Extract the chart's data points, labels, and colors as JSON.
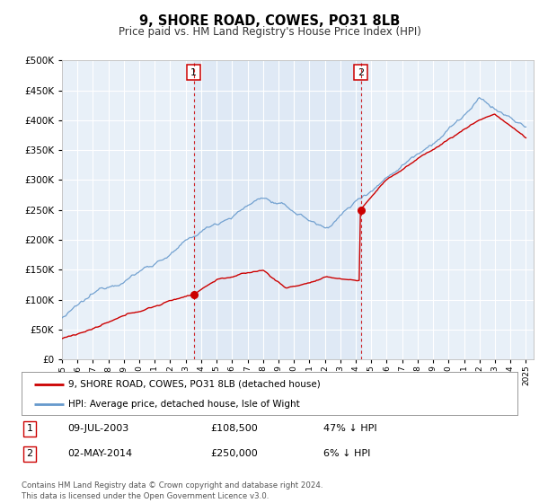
{
  "title": "9, SHORE ROAD, COWES, PO31 8LB",
  "subtitle": "Price paid vs. HM Land Registry's House Price Index (HPI)",
  "legend_label_red": "9, SHORE ROAD, COWES, PO31 8LB (detached house)",
  "legend_label_blue": "HPI: Average price, detached house, Isle of Wight",
  "sale1_label": "1",
  "sale1_date": "09-JUL-2003",
  "sale1_price": "£108,500",
  "sale1_pct": "47% ↓ HPI",
  "sale1_year": 2003.52,
  "sale1_value": 108500,
  "sale2_label": "2",
  "sale2_date": "02-MAY-2014",
  "sale2_price": "£250,000",
  "sale2_pct": "6% ↓ HPI",
  "sale2_year": 2014.34,
  "sale2_value": 250000,
  "footer": "Contains HM Land Registry data © Crown copyright and database right 2024.\nThis data is licensed under the Open Government Licence v3.0.",
  "ylim": [
    0,
    500000
  ],
  "xlim_start": 1995.0,
  "xlim_end": 2025.5,
  "red_color": "#cc0000",
  "blue_color": "#6699cc",
  "dashed_color": "#cc0000",
  "bg_plot_color": "#e8f0f8",
  "grid_color": "#ffffff",
  "shade_color": "#ddeeff"
}
